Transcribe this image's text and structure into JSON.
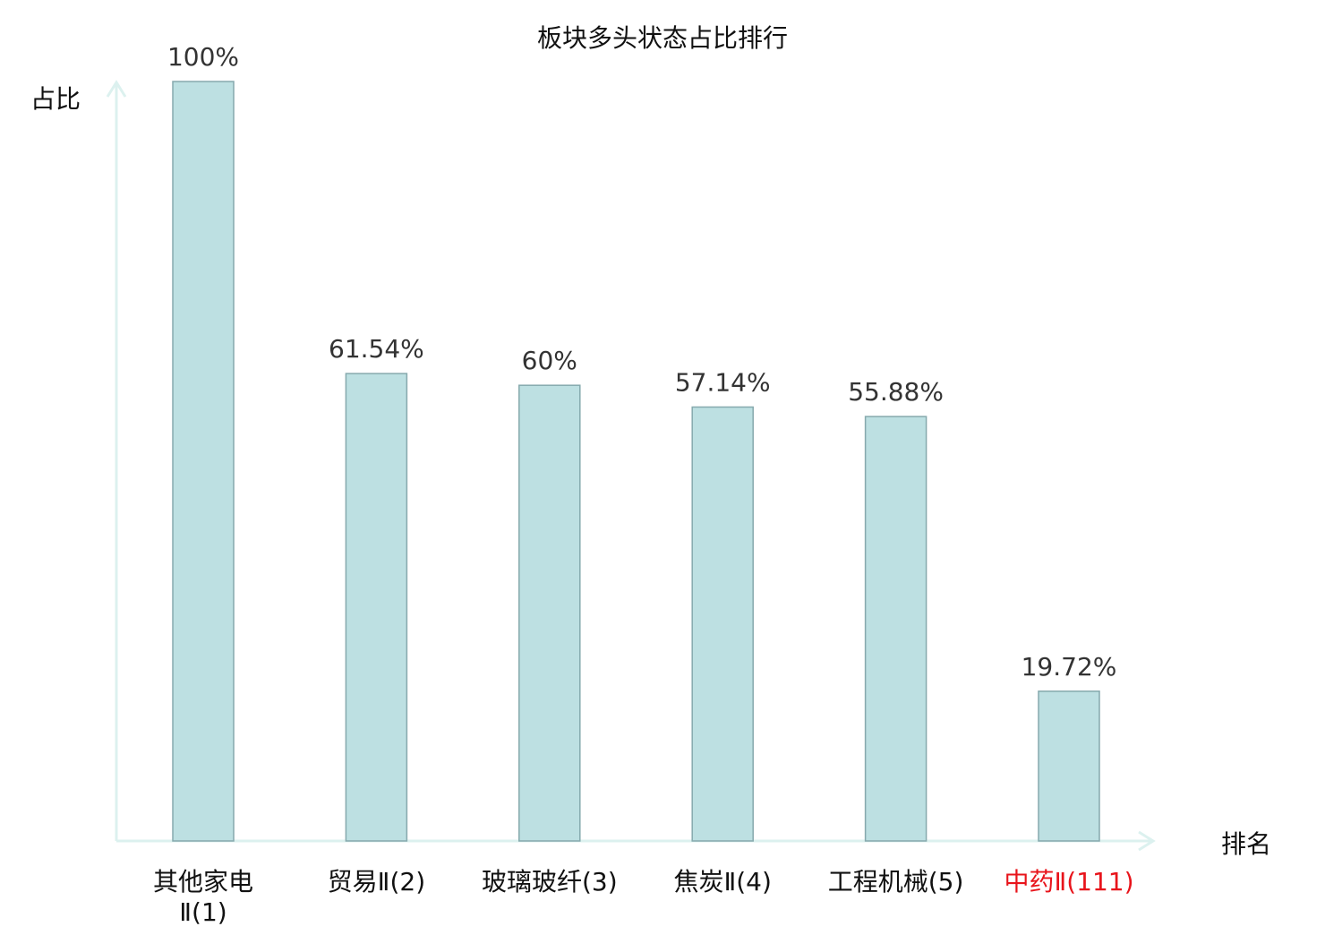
{
  "colors": {
    "bar_fill": "#bde0e2",
    "bar_stroke": "#86a9ad",
    "axis": "#dcf1ef",
    "text": "#111111",
    "value_text": "#333333",
    "highlight": "#e8141b"
  },
  "chart_data": {
    "type": "bar",
    "title": "板块多头状态占比排行",
    "xlabel": "排名",
    "ylabel": "占比",
    "ylim": [
      0,
      100
    ],
    "grid": false,
    "categories": [
      {
        "lines": [
          "其他家电",
          "Ⅱ(1)"
        ],
        "highlight": false
      },
      {
        "lines": [
          "贸易Ⅱ(2)"
        ],
        "highlight": false
      },
      {
        "lines": [
          "玻璃玻纤(3)"
        ],
        "highlight": false
      },
      {
        "lines": [
          "焦炭Ⅱ(4)"
        ],
        "highlight": false
      },
      {
        "lines": [
          "工程机械(5)"
        ],
        "highlight": false
      },
      {
        "lines": [
          "中药Ⅱ(111)"
        ],
        "highlight": true
      }
    ],
    "values": [
      100,
      61.54,
      60,
      57.14,
      55.88,
      19.72
    ],
    "value_labels": [
      "100%",
      "61.54%",
      "60%",
      "57.14%",
      "55.88%",
      "19.72%"
    ]
  }
}
